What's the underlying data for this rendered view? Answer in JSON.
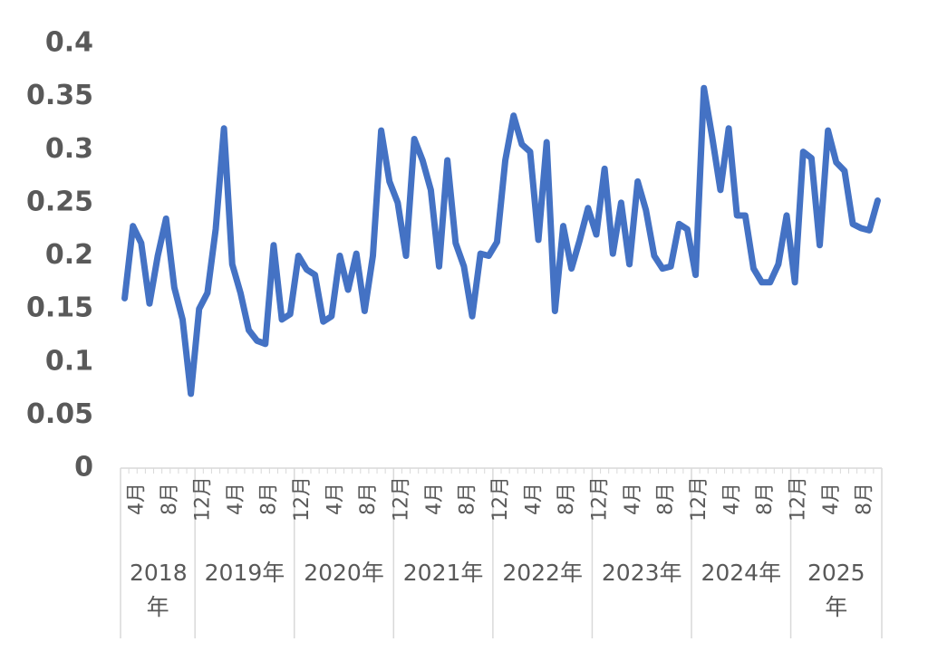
{
  "chart_data": {
    "type": "line",
    "groups": [
      {
        "label": "2018年",
        "categories": [
          null,
          "4月",
          null,
          null,
          null,
          "8月",
          null,
          null,
          null
        ]
      },
      {
        "label": "2019年",
        "categories": [
          "12月",
          null,
          null,
          null,
          "4月",
          null,
          null,
          null,
          "8月",
          null,
          null,
          null
        ]
      },
      {
        "label": "2020年",
        "categories": [
          "12月",
          null,
          null,
          null,
          "4月",
          null,
          null,
          null,
          "8月",
          null,
          null,
          null
        ]
      },
      {
        "label": "2021年",
        "categories": [
          "12月",
          null,
          null,
          null,
          "4月",
          null,
          null,
          null,
          "8月",
          null,
          null,
          null
        ]
      },
      {
        "label": "2022年",
        "categories": [
          "12月",
          null,
          null,
          null,
          "4月",
          null,
          null,
          null,
          "8月",
          null,
          null,
          null
        ]
      },
      {
        "label": "2023年",
        "categories": [
          "12月",
          null,
          null,
          null,
          "4月",
          null,
          null,
          null,
          "8月",
          null,
          null,
          null
        ]
      },
      {
        "label": "2024年",
        "categories": [
          "12月",
          null,
          null,
          null,
          "4月",
          null,
          null,
          null,
          "8月",
          null,
          null,
          null
        ]
      },
      {
        "label": "2025年",
        "categories": [
          "12月",
          null,
          null,
          null,
          "4月",
          null,
          null,
          null,
          "8月",
          null,
          null
        ]
      }
    ],
    "values": [
      0.16,
      0.228,
      0.212,
      0.155,
      0.2,
      0.235,
      0.17,
      0.14,
      0.07,
      0.15,
      0.165,
      0.225,
      0.32,
      0.192,
      0.165,
      0.13,
      0.12,
      0.117,
      0.21,
      0.14,
      0.145,
      0.2,
      0.187,
      0.182,
      0.138,
      0.143,
      0.2,
      0.168,
      0.202,
      0.148,
      0.2,
      0.318,
      0.27,
      0.25,
      0.2,
      0.31,
      0.29,
      0.262,
      0.19,
      0.29,
      0.212,
      0.19,
      0.143,
      0.202,
      0.2,
      0.213,
      0.29,
      0.332,
      0.305,
      0.298,
      0.215,
      0.307,
      0.148,
      0.228,
      0.188,
      0.215,
      0.245,
      0.22,
      0.282,
      0.202,
      0.25,
      0.192,
      0.27,
      0.243,
      0.2,
      0.188,
      0.19,
      0.23,
      0.225,
      0.182,
      0.358,
      0.312,
      0.262,
      0.32,
      0.238,
      0.238,
      0.188,
      0.175,
      0.175,
      0.192,
      0.238,
      0.175,
      0.298,
      0.292,
      0.21,
      0.318,
      0.288,
      0.28,
      0.23,
      0.226,
      0.224,
      0.252
    ],
    "color": "#4472c4",
    "ylim": [
      0,
      0.4
    ],
    "yticks": [
      0,
      0.05,
      0.1,
      0.15,
      0.2,
      0.25,
      0.3,
      0.35,
      0.4
    ],
    "grid": false
  }
}
